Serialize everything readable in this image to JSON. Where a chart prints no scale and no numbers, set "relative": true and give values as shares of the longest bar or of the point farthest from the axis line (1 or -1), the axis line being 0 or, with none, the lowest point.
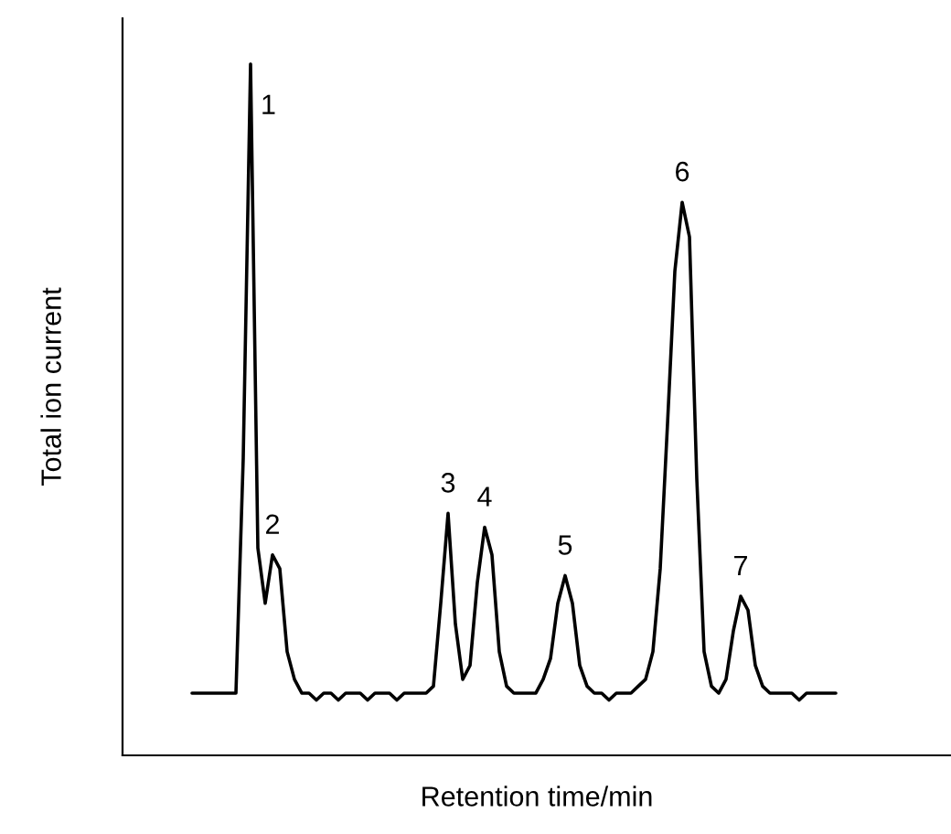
{
  "chart_data": {
    "type": "line",
    "relative": true,
    "tick_labels": false,
    "xlabel": "Retention time/min",
    "ylabel": "Total ion current",
    "categories": [
      null,
      null,
      null,
      null,
      null,
      null,
      null,
      null,
      null,
      null,
      null,
      null,
      null,
      null,
      null,
      null,
      null,
      null,
      null,
      null,
      null,
      null,
      null,
      null,
      null,
      null,
      null,
      null,
      null,
      null,
      null,
      null,
      null,
      null,
      null,
      null,
      null,
      null,
      null,
      null,
      null,
      null,
      null,
      null,
      null,
      null,
      null,
      null,
      null,
      null,
      null,
      null,
      null,
      null,
      null,
      null,
      null,
      null,
      null,
      null,
      null,
      null,
      null,
      null,
      null,
      null,
      null,
      null,
      null,
      null,
      null,
      null,
      null,
      null,
      null,
      null,
      null,
      null,
      null,
      null,
      null,
      null,
      null,
      null,
      null,
      null,
      null,
      null,
      null
    ],
    "series": [
      {
        "color": "#000000",
        "values": [
          0.09,
          0.09,
          0.09,
          0.09,
          0.09,
          0.09,
          0.09,
          0.43,
          1.0,
          0.3,
          0.22,
          0.29,
          0.27,
          0.15,
          0.11,
          0.09,
          0.09,
          0.08,
          0.09,
          0.09,
          0.08,
          0.09,
          0.09,
          0.09,
          0.08,
          0.09,
          0.09,
          0.09,
          0.08,
          0.09,
          0.09,
          0.09,
          0.09,
          0.1,
          0.22,
          0.35,
          0.19,
          0.11,
          0.13,
          0.25,
          0.33,
          0.29,
          0.15,
          0.1,
          0.09,
          0.09,
          0.09,
          0.09,
          0.11,
          0.14,
          0.22,
          0.26,
          0.22,
          0.13,
          0.1,
          0.09,
          0.09,
          0.08,
          0.09,
          0.09,
          0.09,
          0.1,
          0.11,
          0.15,
          0.27,
          0.48,
          0.7,
          0.8,
          0.75,
          0.4,
          0.15,
          0.1,
          0.09,
          0.11,
          0.18,
          0.23,
          0.21,
          0.13,
          0.1,
          0.09,
          0.09,
          0.09,
          0.09,
          0.08,
          0.09,
          0.09,
          0.09,
          0.09,
          0.09
        ]
      }
    ],
    "annotations": [
      "1",
      "2",
      "3",
      "4",
      "5",
      "6",
      "7"
    ]
  }
}
